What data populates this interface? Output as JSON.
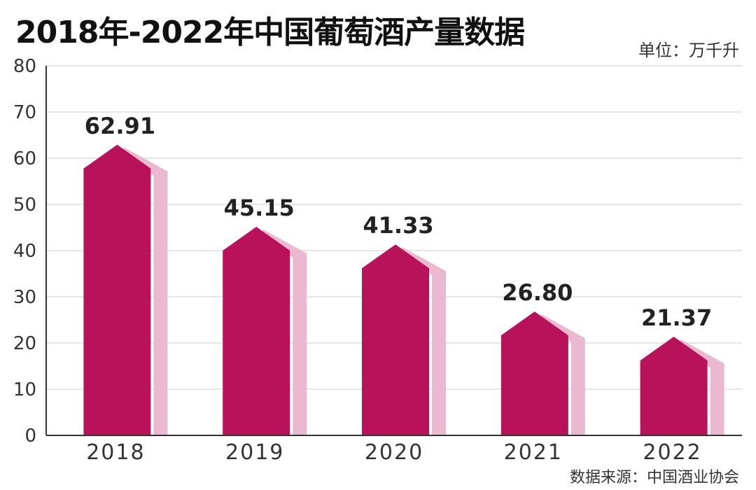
{
  "chart_data": {
    "type": "bar",
    "title": "2018年-2022年中国葡萄酒产量数据",
    "unit_label": "单位：万千升",
    "source": "数据来源：中国酒业协会",
    "categories": [
      "2018",
      "2019",
      "2020",
      "2021",
      "2022"
    ],
    "values": [
      62.91,
      45.15,
      41.33,
      26.8,
      21.37
    ],
    "value_labels": [
      "62.91",
      "45.15",
      "41.33",
      "26.80",
      "21.37"
    ],
    "ylim": [
      0,
      80
    ],
    "yticks": [
      0,
      10,
      20,
      30,
      40,
      50,
      60,
      70,
      80
    ],
    "grid": true,
    "colors": {
      "bar": "#b8135a",
      "shadow": "#ebb9cf",
      "grid": "#dddddd",
      "axis": "#333333"
    }
  }
}
